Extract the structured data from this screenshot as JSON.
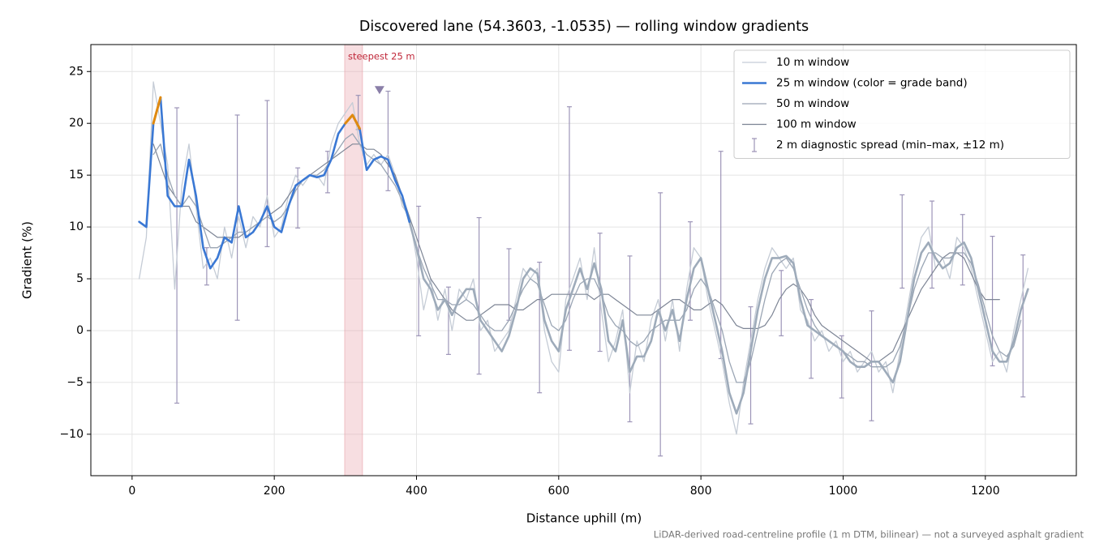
{
  "chart_data": {
    "type": "line",
    "title": "Discovered lane (54.3603, -1.0535) — rolling window gradients",
    "xlabel": "Distance uphill (m)",
    "ylabel": "Gradient (%)",
    "footnote": "LiDAR-derived road-centreline profile (1 m DTM, bilinear) — not a surveyed asphalt gradient",
    "annotation": "steepest 25 m",
    "highlight_span": [
      299,
      324
    ],
    "highlight_color": "#e8a0a8",
    "annotation_color": "#c0283a",
    "marker": {
      "x": 348,
      "y": 23.2,
      "color": "#8a7fa8"
    },
    "xlim": [
      -58,
      1328
    ],
    "ylim": [
      -14,
      27.6
    ],
    "xticks": [
      0,
      200,
      400,
      600,
      800,
      1000,
      1200
    ],
    "yticks": [
      {
        "value": -10,
        "label": "−10"
      },
      {
        "value": -5,
        "label": "−5"
      },
      0,
      5,
      10,
      15,
      20,
      25
    ],
    "grid": true,
    "legend": "upper right",
    "x": [
      10,
      20,
      30,
      40,
      50,
      60,
      70,
      80,
      90,
      100,
      110,
      120,
      130,
      140,
      150,
      160,
      170,
      180,
      190,
      200,
      210,
      220,
      230,
      240,
      250,
      260,
      270,
      280,
      290,
      300,
      310,
      320,
      330,
      340,
      350,
      360,
      370,
      380,
      390,
      400,
      410,
      420,
      430,
      440,
      450,
      460,
      470,
      480,
      490,
      500,
      510,
      520,
      530,
      540,
      550,
      560,
      570,
      580,
      590,
      600,
      610,
      620,
      630,
      640,
      650,
      660,
      670,
      680,
      690,
      700,
      710,
      720,
      730,
      740,
      750,
      760,
      770,
      780,
      790,
      800,
      810,
      820,
      830,
      840,
      850,
      860,
      870,
      880,
      890,
      900,
      910,
      920,
      930,
      940,
      950,
      960,
      970,
      980,
      990,
      1000,
      1010,
      1020,
      1030,
      1040,
      1050,
      1060,
      1070,
      1080,
      1090,
      1100,
      1110,
      1120,
      1130,
      1140,
      1150,
      1160,
      1170,
      1180,
      1190,
      1200,
      1210,
      1220,
      1230,
      1240,
      1250,
      1260
    ],
    "series": [
      {
        "name": "10 m window",
        "color": "#c5ccd6",
        "width": 1.3,
        "values": [
          5,
          9,
          24,
          20,
          16,
          4,
          14,
          18,
          12,
          6,
          7,
          5,
          10,
          7,
          11,
          8,
          11,
          10,
          13,
          9,
          10,
          13,
          15,
          14,
          15,
          15,
          14,
          18,
          20,
          21,
          22,
          18,
          16,
          17,
          16,
          17,
          15,
          12,
          11,
          7,
          2,
          5,
          1,
          4,
          0,
          4,
          3,
          5,
          0,
          1,
          -2,
          -1,
          0,
          3,
          6,
          5,
          6,
          0,
          -3,
          -4,
          3,
          5,
          7,
          3,
          8,
          2,
          -3,
          -1,
          2,
          -6,
          -1,
          -3,
          1,
          3,
          -1,
          3,
          -2,
          4,
          8,
          7,
          3,
          0,
          -3,
          -7,
          -10,
          -5,
          -1,
          3,
          6,
          8,
          7,
          6,
          7,
          2,
          1,
          -1,
          0,
          -2,
          -1,
          -3,
          -2,
          -4,
          -3,
          -2,
          -4,
          -3,
          -6,
          -2,
          2,
          6,
          9,
          10,
          6,
          7,
          5,
          9,
          8,
          6,
          3,
          0,
          -3,
          -2,
          -4,
          0,
          3,
          6
        ]
      },
      {
        "name": "25 m window (color = grade band)",
        "color": "#3a78d4",
        "width": 2.6,
        "fade_after": 390,
        "fade_color": "#9eabba",
        "grade_band": {
          "min": 19.5,
          "color": "#e08a10"
        },
        "values": [
          10.5,
          10,
          20,
          22.5,
          13,
          12,
          12,
          16.5,
          13,
          8,
          6,
          7,
          9,
          8.5,
          12,
          9,
          9.5,
          10.5,
          12,
          10,
          9.5,
          12,
          14,
          14.5,
          15,
          14.8,
          15,
          16.5,
          19,
          20,
          20.8,
          19.5,
          15.5,
          16.5,
          16.8,
          16.5,
          14.5,
          13,
          10.5,
          8,
          5,
          4,
          2,
          3,
          1.5,
          3,
          4,
          4,
          1,
          0,
          -1,
          -2,
          -0.5,
          2,
          5,
          6,
          5.5,
          1,
          -1,
          -2,
          2,
          4,
          6,
          4,
          6.5,
          4,
          -1,
          -2,
          1,
          -4,
          -2.5,
          -2.5,
          -1,
          2,
          0,
          2,
          -1,
          3,
          6,
          7,
          4,
          1,
          -2,
          -6,
          -8,
          -6,
          -2,
          2,
          5,
          7,
          7,
          7.2,
          6.5,
          3,
          0.5,
          0,
          -0.5,
          -1,
          -1.5,
          -2,
          -3,
          -3.5,
          -3.5,
          -3,
          -3,
          -4,
          -5,
          -3,
          1,
          5,
          7.5,
          8.5,
          7,
          6,
          6.5,
          8,
          8.5,
          7,
          4,
          1,
          -2,
          -3,
          -3,
          -1,
          2,
          4
        ]
      },
      {
        "name": "50 m window",
        "color": "#9aa5b4",
        "width": 1.3,
        "values": [
          null,
          null,
          17,
          18,
          15,
          13,
          12,
          13,
          12,
          10,
          8,
          8,
          8.5,
          9,
          9.5,
          9.5,
          10,
          10.5,
          11,
          10.5,
          11,
          12,
          13.5,
          14.5,
          15,
          15,
          15.5,
          16.5,
          17.5,
          18.5,
          19,
          18,
          17,
          16.5,
          16,
          15,
          14,
          12.5,
          10.5,
          8,
          6,
          4.5,
          3,
          3,
          2.5,
          2.5,
          3,
          2.5,
          1.5,
          0.5,
          0,
          0,
          1,
          2.5,
          4,
          5,
          4.5,
          2.5,
          0.5,
          0,
          1,
          3,
          4.5,
          5,
          5,
          3.5,
          1.5,
          0.5,
          0,
          -1,
          -1.5,
          -1,
          0,
          0.5,
          1,
          1,
          1,
          2,
          4,
          5,
          4,
          2,
          0,
          -3,
          -5,
          -5,
          -3,
          0,
          3,
          5.5,
          6.5,
          7,
          6,
          4,
          2,
          0.5,
          -0.5,
          -1,
          -1.5,
          -2,
          -2.5,
          -3,
          -3,
          -3.5,
          -3.5,
          -3.5,
          -3,
          -1.5,
          1,
          4,
          6,
          7.5,
          7.5,
          7,
          7,
          7.5,
          7.5,
          6.5,
          4.5,
          2,
          -0.5,
          -2,
          -2.5,
          -1.5,
          1,
          null
        ]
      },
      {
        "name": "100 m window",
        "color": "#7d8595",
        "width": 1.2,
        "values": [
          null,
          null,
          18,
          16,
          14,
          13,
          12,
          12,
          10.5,
          10,
          9.5,
          9,
          9,
          9,
          9,
          9.5,
          10,
          10.5,
          11,
          11.5,
          12,
          13,
          14,
          14.5,
          15,
          15.5,
          16,
          16.5,
          17,
          17.5,
          18,
          18,
          17.5,
          17.5,
          17,
          16,
          15,
          13,
          11,
          9,
          7,
          5,
          4,
          3,
          2,
          1.5,
          1,
          1,
          1.5,
          2,
          2.5,
          2.5,
          2.5,
          2,
          2,
          2.5,
          3,
          3,
          3.5,
          3.5,
          3.5,
          3.5,
          3.5,
          3.5,
          3,
          3.5,
          3.5,
          3,
          2.5,
          2,
          1.5,
          1.5,
          1.5,
          2,
          2.5,
          3,
          3,
          2.5,
          2,
          2,
          2.5,
          3,
          2.5,
          1.5,
          0.5,
          0.2,
          0.2,
          0.2,
          0.5,
          1.5,
          3,
          4,
          4.5,
          4,
          3,
          1.5,
          0.5,
          0,
          -0.5,
          -1,
          -1.5,
          -2,
          -2.5,
          -3,
          -3,
          -2.5,
          -2,
          -0.5,
          1,
          2.5,
          4,
          5,
          6,
          7,
          7.5,
          7.5,
          7,
          5.5,
          4,
          3,
          3,
          3,
          null,
          null,
          null,
          null
        ]
      }
    ],
    "errorbars": {
      "name": "2 m diagnostic spread (min–max, ±12 m)",
      "color": "#9d95b8",
      "x": [
        63,
        105,
        148,
        190,
        233,
        275,
        318,
        360,
        403,
        445,
        488,
        530,
        573,
        615,
        658,
        700,
        743,
        785,
        828,
        870,
        913,
        955,
        998,
        1040,
        1083,
        1125,
        1168,
        1210,
        1253
      ],
      "low": [
        -7,
        4.4,
        1,
        8.1,
        9.9,
        13.3,
        19.4,
        13.5,
        -0.5,
        -2.3,
        -4.2,
        1,
        -6,
        -1.9,
        -2,
        -8.8,
        -12.1,
        1,
        -2.7,
        -9,
        -0.5,
        -4.6,
        -6.5,
        -8.7,
        4.1,
        4.1,
        4.4,
        -3.4,
        -6.4
      ],
      "high": [
        21.5,
        8,
        20.8,
        22.2,
        15.7,
        17.3,
        22.7,
        23.1,
        12,
        4.2,
        10.9,
        7.9,
        6.6,
        21.6,
        9.4,
        7.2,
        13.3,
        10.5,
        17.3,
        2.3,
        5.8,
        3,
        -0.5,
        1.9,
        13.1,
        12.5,
        11.2,
        9.1,
        7.3
      ]
    }
  }
}
